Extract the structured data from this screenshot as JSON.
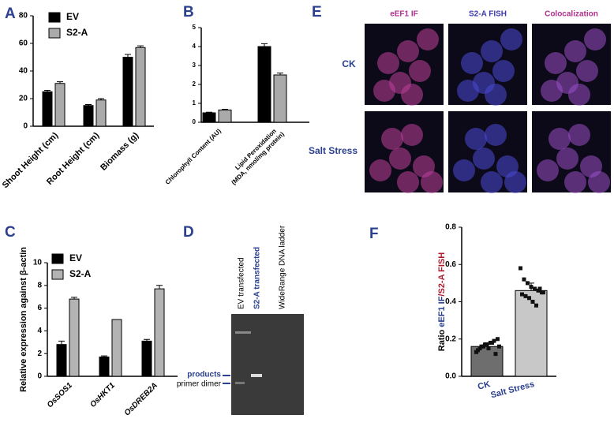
{
  "chart_data": [
    {
      "type": "bar",
      "panel": "A",
      "categories": [
        "Shoot Height (cm)",
        "Root Height (cm)",
        "Biomass (g)"
      ],
      "series": [
        {
          "name": "EV",
          "color": "#000000",
          "values": [
            25,
            15,
            50
          ],
          "errors": [
            1,
            0.7,
            2
          ]
        },
        {
          "name": "S2-A",
          "color": "#aaaaaa",
          "values": [
            31,
            19,
            57
          ],
          "errors": [
            1.2,
            1,
            1.2
          ]
        }
      ],
      "ylim": [
        0,
        80
      ],
      "yticks": [
        0,
        20,
        40,
        60,
        80
      ]
    },
    {
      "type": "bar",
      "panel": "B",
      "categories": [
        [
          "Chlorophyll Content (AU)"
        ],
        [
          "Lipid Peroxidation",
          "(MDA, nmol/mg protein)"
        ]
      ],
      "series": [
        {
          "color": "#000000",
          "values": [
            0.5,
            4.0
          ],
          "errors": [
            0.03,
            0.15
          ]
        },
        {
          "color": "#aaaaaa",
          "values": [
            0.65,
            2.5
          ],
          "errors": [
            0.04,
            0.1
          ]
        }
      ],
      "ylim": [
        0,
        5
      ],
      "yticks": [
        0,
        1,
        2,
        3,
        4,
        5
      ]
    },
    {
      "type": "bar",
      "panel": "C",
      "ylabel": "Relative expression against β-actin",
      "categories": [
        "OsSOS1",
        "OsHKT1",
        "OsDREB2A"
      ],
      "series": [
        {
          "name": "EV",
          "color": "#000000",
          "values": [
            2.8,
            1.7,
            3.1
          ],
          "errors": [
            0.3,
            0.1,
            0.15
          ]
        },
        {
          "name": "S2-A",
          "color": "#b3b3b3",
          "values": [
            6.8,
            5.0,
            7.7
          ],
          "errors": [
            0.15,
            0,
            0.3
          ]
        }
      ],
      "ylim": [
        0,
        10
      ],
      "yticks": [
        0,
        2,
        4,
        6,
        8,
        10
      ]
    },
    {
      "type": "bar",
      "panel": "F",
      "ylabel": [
        "Ratio ",
        "eEF1 IF",
        "/S2-A FISH"
      ],
      "categories": [
        "CK",
        "Salt Stress"
      ],
      "values": [
        0.16,
        0.46
      ],
      "errors": [
        0.02,
        0.04
      ],
      "colors": [
        "#6e6e6e",
        "#c8c8c8"
      ],
      "points": [
        [
          0.13,
          0.15,
          0.16,
          0.17,
          0.18,
          0.19,
          0.2,
          0.14,
          0.16,
          0.17,
          0.15,
          0.18,
          0.12,
          0.16
        ],
        [
          0.58,
          0.52,
          0.5,
          0.48,
          0.47,
          0.46,
          0.45,
          0.44,
          0.43,
          0.42,
          0.4,
          0.38,
          0.47,
          0.45
        ]
      ],
      "ylim": [
        0,
        0.8
      ],
      "yticks": [
        {
          "value": 0,
          "label": "0.0"
        },
        0.2,
        0.4,
        0.6,
        0.8
      ]
    }
  ],
  "gel": {
    "panel": "D",
    "column_labels": [
      "EV transfected",
      "S2-A transfected",
      "WideRange DNA ladder"
    ],
    "band_labels": [
      "products",
      "primer dimer"
    ]
  },
  "microscopy": {
    "panel": "E",
    "column_labels": [
      "eEF1 IF",
      "S2-A FISH",
      "Colocalization"
    ],
    "row_labels": [
      "CK",
      "Salt Stress"
    ]
  }
}
